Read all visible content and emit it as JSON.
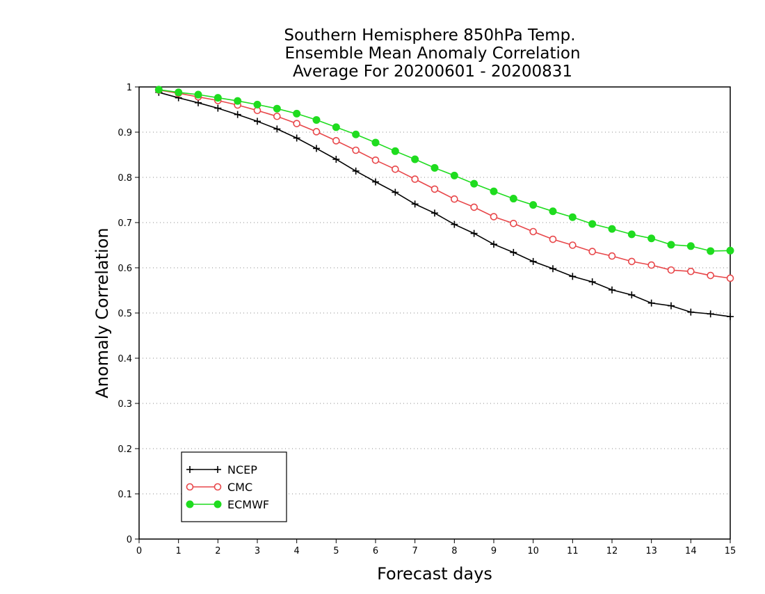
{
  "chart_data": {
    "type": "line",
    "title_lines": [
      "Southern Hemisphere 850hPa Temp.",
      "Ensemble Mean Anomaly Correlation",
      "Average For 20200601 - 20200831"
    ],
    "xlabel": "Forecast days",
    "ylabel": "Anomaly Correlation",
    "xlim": [
      0,
      15
    ],
    "ylim": [
      0,
      1
    ],
    "xticks": [
      "0",
      "1",
      "2",
      "3",
      "4",
      "5",
      "6",
      "7",
      "8",
      "9",
      "10",
      "11",
      "12",
      "13",
      "14",
      "15"
    ],
    "yticks": [
      "0",
      "0.1",
      "0.2",
      "0.3",
      "0.4",
      "0.5",
      "0.6",
      "0.7",
      "0.8",
      "0.9",
      "1"
    ],
    "grid": "horizontal dotted",
    "legend_position": "lower-left",
    "x": [
      0.5,
      1,
      1.5,
      2,
      2.5,
      3,
      3.5,
      4,
      4.5,
      5,
      5.5,
      6,
      6.5,
      7,
      7.5,
      8,
      8.5,
      9,
      9.5,
      10,
      10.5,
      11,
      11.5,
      12,
      12.5,
      13,
      13.5,
      14,
      14.5,
      15
    ],
    "series": [
      {
        "name": "NCEP",
        "color": "#000000",
        "marker": "plus",
        "values": [
          0.988,
          0.976,
          0.965,
          0.953,
          0.939,
          0.924,
          0.907,
          0.887,
          0.864,
          0.84,
          0.814,
          0.79,
          0.767,
          0.741,
          0.721,
          0.696,
          0.676,
          0.652,
          0.634,
          0.614,
          0.598,
          0.581,
          0.569,
          0.551,
          0.54,
          0.522,
          0.516,
          0.502,
          0.498,
          0.492
        ]
      },
      {
        "name": "CMC",
        "color": "#e8474a",
        "marker": "open-circle",
        "values": [
          0.993,
          0.986,
          0.978,
          0.97,
          0.96,
          0.948,
          0.935,
          0.919,
          0.901,
          0.881,
          0.86,
          0.838,
          0.818,
          0.796,
          0.774,
          0.752,
          0.734,
          0.713,
          0.698,
          0.68,
          0.663,
          0.65,
          0.636,
          0.626,
          0.614,
          0.606,
          0.595,
          0.592,
          0.583,
          0.577
        ]
      },
      {
        "name": "ECMWF",
        "color": "#1fdc1f",
        "marker": "filled-circle",
        "values": [
          0.994,
          0.988,
          0.983,
          0.976,
          0.969,
          0.961,
          0.952,
          0.941,
          0.927,
          0.911,
          0.895,
          0.877,
          0.858,
          0.84,
          0.821,
          0.804,
          0.786,
          0.769,
          0.753,
          0.739,
          0.725,
          0.712,
          0.697,
          0.686,
          0.674,
          0.665,
          0.651,
          0.648,
          0.637,
          0.638
        ]
      }
    ]
  }
}
